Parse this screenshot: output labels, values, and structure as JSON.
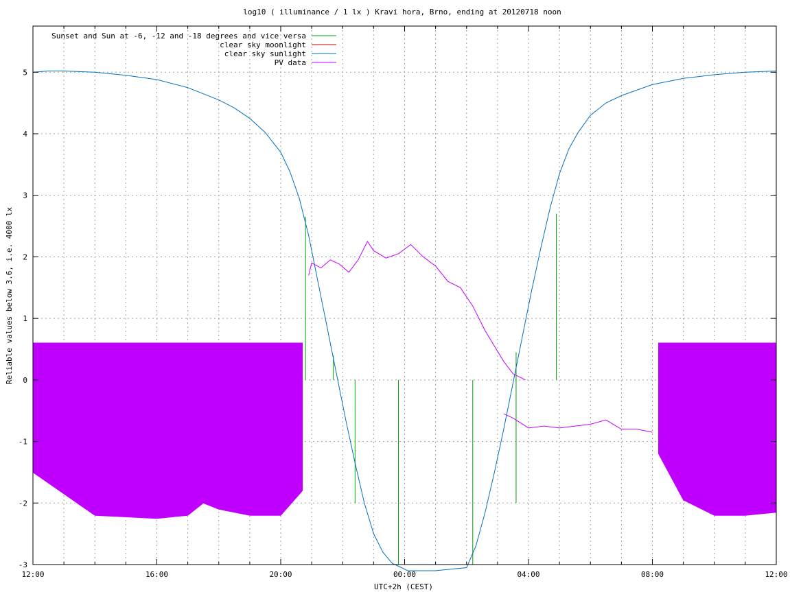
{
  "chart_data": {
    "type": "line",
    "title": "log10 ( illuminance / 1 lx ) Kravi hora, Brno, ending at 20120718 noon",
    "xlabel": "UTC+2h (CEST)",
    "ylabel": "Reliable values below 3.6, i.e. 4000 lx",
    "xlim": [
      0,
      24
    ],
    "ylim": [
      -3,
      5.75
    ],
    "x_unit": "hours since 12:00 (local time UTC+2h)",
    "x_ticks": [
      {
        "value": 0,
        "label": "12:00"
      },
      {
        "value": 4,
        "label": "16:00"
      },
      {
        "value": 8,
        "label": "20:00"
      },
      {
        "value": 12,
        "label": "00:00"
      },
      {
        "value": 16,
        "label": "04:00"
      },
      {
        "value": 20,
        "label": "08:00"
      },
      {
        "value": 24,
        "label": "12:00"
      }
    ],
    "y_ticks": [
      -3,
      -2,
      -1,
      0,
      1,
      2,
      3,
      4,
      5
    ],
    "grid": true,
    "legend_position": "top-left",
    "series": [
      {
        "name": "Sunset and Sun at -6, -12 and -18 degrees and vice versa",
        "color": "#00a000",
        "kind": "impulses",
        "x": [
          8.8,
          9.7,
          10.4,
          11.8,
          14.2,
          15.6,
          16.9
        ],
        "y": [
          2.65,
          0.4,
          0,
          0,
          0,
          0.45,
          2.7
        ],
        "base": [
          0,
          0,
          -2.0,
          -3,
          -3,
          -2.0,
          0
        ]
      },
      {
        "name": "clear sky moonlight",
        "color": "#cc0000",
        "kind": "line",
        "x": [],
        "y": []
      },
      {
        "name": "clear sky sunlight",
        "color": "#0070c0",
        "kind": "line",
        "x": [
          0,
          0.5,
          1.0,
          2.0,
          3.0,
          4.0,
          5.0,
          6.0,
          6.5,
          7.0,
          7.5,
          8.0,
          8.3,
          8.6,
          8.9,
          9.2,
          9.5,
          9.8,
          10.1,
          10.4,
          10.7,
          11.0,
          11.3,
          11.6,
          11.9,
          12.1,
          13.0,
          14.0,
          14.3,
          14.6,
          14.9,
          15.2,
          15.5,
          15.8,
          16.1,
          16.4,
          16.7,
          17.0,
          17.3,
          17.6,
          18.0,
          18.5,
          19.0,
          20.0,
          21.0,
          22.0,
          23.0,
          24.0
        ],
        "y": [
          5.0,
          5.02,
          5.02,
          5.0,
          4.95,
          4.88,
          4.75,
          4.55,
          4.42,
          4.25,
          4.02,
          3.7,
          3.38,
          2.95,
          2.35,
          1.6,
          0.85,
          0.1,
          -0.65,
          -1.35,
          -2.0,
          -2.5,
          -2.8,
          -2.98,
          -3.05,
          -3.1,
          -3.1,
          -3.05,
          -2.7,
          -2.15,
          -1.5,
          -0.8,
          -0.05,
          0.7,
          1.45,
          2.15,
          2.8,
          3.35,
          3.75,
          4.02,
          4.3,
          4.5,
          4.62,
          4.8,
          4.9,
          4.96,
          5.0,
          5.02
        ]
      },
      {
        "name": "PV data",
        "color": "#c000ff",
        "kind": "line",
        "x": [
          8.9,
          9.0,
          9.3,
          9.6,
          9.9,
          10.2,
          10.5,
          10.8,
          11.0,
          11.4,
          11.8,
          12.2,
          12.6,
          13.0,
          13.4,
          13.8,
          14.2,
          14.6,
          14.9,
          15.2,
          15.5,
          15.9
        ],
        "y": [
          1.7,
          1.9,
          1.82,
          1.95,
          1.88,
          1.75,
          1.95,
          2.25,
          2.1,
          1.98,
          2.05,
          2.2,
          2.0,
          1.85,
          1.6,
          1.5,
          1.2,
          0.8,
          0.55,
          0.3,
          0.1,
          0.0
        ],
        "envelope_x": [
          0,
          2,
          4,
          5,
          5.5,
          6,
          7,
          8,
          8.7,
          20.2,
          21,
          22,
          23,
          24
        ],
        "envelope_low": [
          -1.5,
          -2.2,
          -2.25,
          -2.2,
          -2.0,
          -2.1,
          -2.2,
          -2.2,
          -1.8,
          -1.2,
          -1.95,
          -2.2,
          -2.2,
          -2.15
        ],
        "envelope_high": [
          0.6,
          0.6,
          0.6,
          0.6,
          0.6,
          0.6,
          0.6,
          0.6,
          0.6,
          0.6,
          0.6,
          0.6,
          0.6,
          0.6
        ],
        "lower_x": [
          15.2,
          15.5,
          16.0,
          16.5,
          17.0,
          17.5,
          18.0,
          18.5,
          19.0,
          19.5,
          20.0
        ],
        "lower_y": [
          -0.55,
          -0.62,
          -0.78,
          -0.75,
          -0.78,
          -0.75,
          -0.72,
          -0.65,
          -0.8,
          -0.8,
          -0.85
        ]
      }
    ]
  }
}
